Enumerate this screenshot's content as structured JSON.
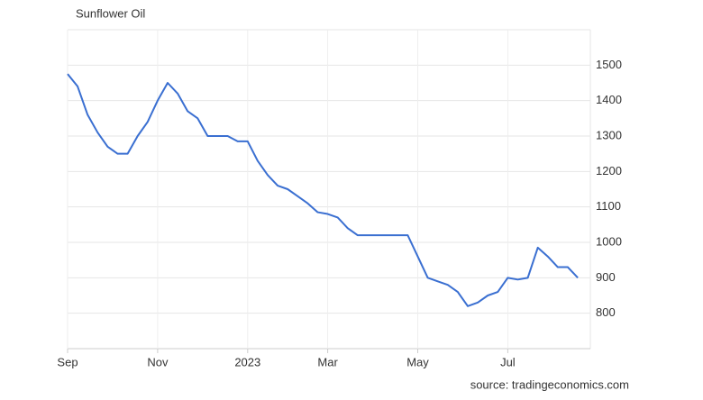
{
  "chart_data": {
    "type": "line",
    "title": "Sunflower Oil",
    "source": "source: tradingeconomics.com",
    "categories": [
      "Sep",
      null,
      null,
      null,
      null,
      null,
      null,
      null,
      null,
      "Nov",
      null,
      null,
      null,
      null,
      null,
      null,
      null,
      null,
      "2023",
      null,
      null,
      null,
      null,
      null,
      null,
      null,
      "Mar",
      null,
      null,
      null,
      null,
      null,
      null,
      null,
      null,
      "May",
      null,
      null,
      null,
      null,
      null,
      null,
      null,
      null,
      "Jul",
      null,
      null,
      null,
      null,
      null,
      null,
      null
    ],
    "values": [
      1475,
      1440,
      1360,
      1310,
      1270,
      1250,
      1250,
      1300,
      1340,
      1400,
      1450,
      1420,
      1370,
      1350,
      1300,
      1300,
      1300,
      1285,
      1285,
      1230,
      1190,
      1160,
      1150,
      1130,
      1110,
      1085,
      1080,
      1070,
      1040,
      1020,
      1020,
      1020,
      1020,
      1020,
      1020,
      960,
      900,
      890,
      880,
      860,
      820,
      830,
      850,
      860,
      900,
      895,
      900,
      985,
      960,
      930,
      930,
      900
    ],
    "color": "#3a6fd1",
    "ylim": [
      700,
      1600
    ],
    "yticks": [
      800,
      900,
      1000,
      1100,
      1200,
      1300,
      1400,
      1500
    ],
    "grid": true,
    "y_axis_side": "right"
  }
}
